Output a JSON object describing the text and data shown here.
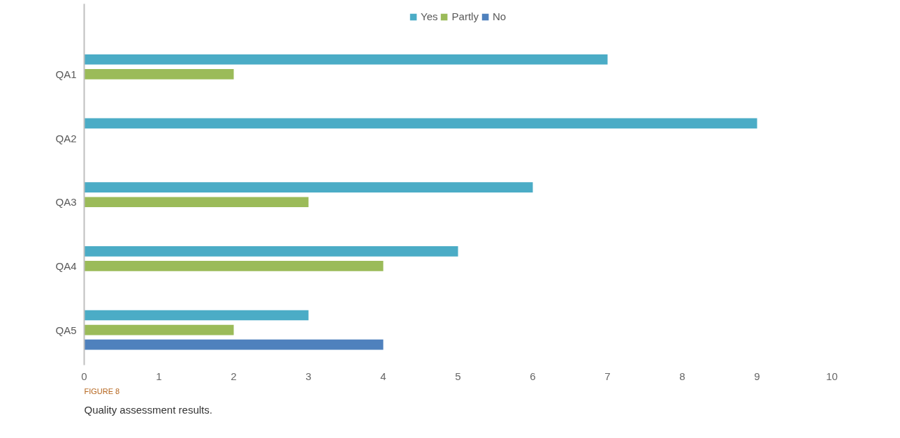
{
  "chart_data": {
    "type": "bar",
    "orientation": "horizontal",
    "categories": [
      "QA1",
      "QA2",
      "QA3",
      "QA4",
      "QA5"
    ],
    "series": [
      {
        "name": "Yes",
        "color": "#4bacc6",
        "values": [
          7,
          9,
          6,
          5,
          3
        ]
      },
      {
        "name": "Partly",
        "color": "#9bbb59",
        "values": [
          2,
          null,
          3,
          4,
          2
        ]
      },
      {
        "name": "No",
        "color": "#4f81bd",
        "values": [
          null,
          null,
          null,
          null,
          4
        ]
      }
    ],
    "xlim": [
      0,
      10
    ],
    "xticks": [
      0,
      1,
      2,
      3,
      4,
      5,
      6,
      7,
      8,
      9,
      10
    ],
    "grid": false,
    "legend": "top",
    "annotations": [
      "FIGURE 8",
      "Quality assessment results."
    ]
  }
}
